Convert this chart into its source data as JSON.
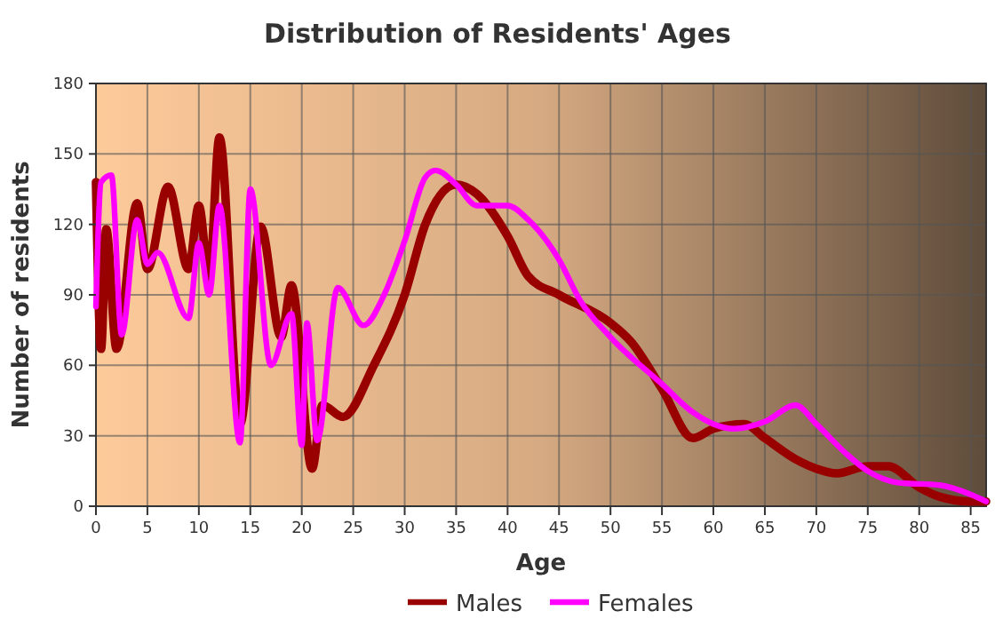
{
  "chart_data": {
    "type": "line",
    "title": "Distribution of Residents' Ages",
    "xlabel": "Age",
    "ylabel": "Number of residents",
    "xlim": [
      0,
      86.5
    ],
    "xticks": [
      0,
      5,
      10,
      15,
      20,
      25,
      30,
      35,
      40,
      45,
      50,
      55,
      60,
      65,
      70,
      75,
      80,
      85
    ],
    "ylim": [
      0,
      180
    ],
    "yticks": [
      0,
      30,
      60,
      90,
      120,
      150,
      180
    ],
    "grid": true,
    "legend": "bottom",
    "line_style": "solid",
    "marker": "none",
    "series": [
      {
        "name": "Males",
        "color": "#990000",
        "x": [
          0,
          0.5,
          1,
          2,
          4,
          5,
          7,
          9,
          10,
          11,
          12,
          14,
          16,
          18,
          19,
          21,
          22,
          24,
          27,
          30,
          32,
          35,
          37,
          40,
          42,
          45,
          50,
          52,
          55,
          58,
          60,
          63,
          65,
          68,
          70,
          72,
          75,
          77,
          80,
          82,
          85,
          86.5
        ],
        "values": [
          138,
          67,
          118,
          67,
          129,
          101,
          136,
          101,
          128,
          97,
          157,
          35,
          119,
          72,
          94,
          16,
          43,
          38,
          60,
          90,
          120,
          137,
          133,
          115,
          98,
          90,
          78,
          70,
          50,
          29,
          33,
          35,
          29,
          20,
          16,
          14,
          17,
          17,
          8,
          4,
          2,
          2
        ]
      },
      {
        "name": "Females",
        "color": "#ff00ff",
        "x": [
          0,
          0.5,
          1.5,
          2.5,
          4,
          5,
          6,
          9,
          10,
          11,
          12,
          14,
          15,
          17,
          19,
          20,
          20.5,
          21.5,
          23.5,
          26,
          28,
          30,
          32,
          33,
          35,
          37,
          40,
          42,
          45,
          47,
          50,
          55,
          58,
          60,
          62,
          65,
          68,
          70,
          73,
          75,
          78,
          82,
          85,
          86.5
        ],
        "values": [
          85,
          138,
          141,
          73,
          122,
          103,
          108,
          80,
          112,
          90,
          128,
          27,
          135,
          60,
          82,
          26,
          78,
          28,
          93,
          77,
          90,
          113,
          140,
          143,
          137,
          128,
          128,
          122,
          105,
          88,
          72,
          52,
          40,
          35,
          33,
          36,
          43,
          35,
          22,
          15,
          10,
          9,
          5,
          2
        ]
      }
    ]
  }
}
